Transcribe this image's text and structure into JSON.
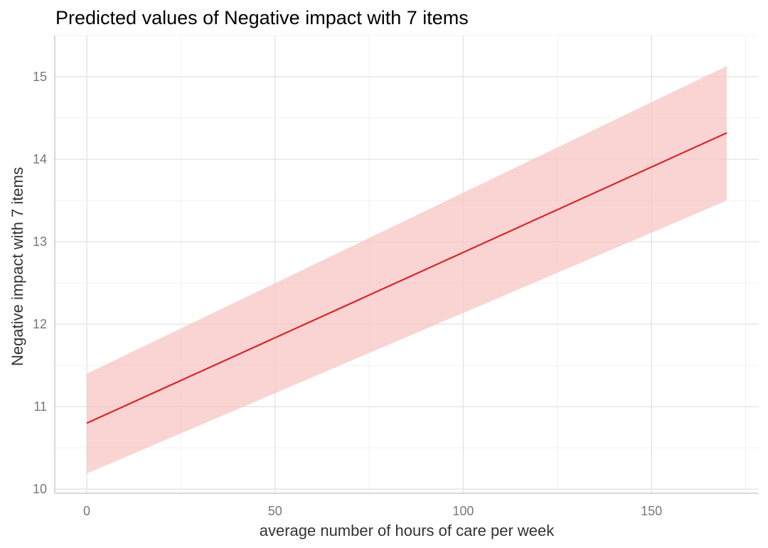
{
  "chart_data": {
    "type": "line",
    "title": "Predicted values of Negative impact with 7 items",
    "xlabel": "average number of hours of care per week",
    "ylabel": "Negative impact with 7 items",
    "xlim": [
      -8.5,
      178.5
    ],
    "ylim": [
      9.95,
      15.5
    ],
    "x_ticks": [
      0,
      50,
      100,
      150
    ],
    "x_minor_ticks": [
      25,
      75,
      125,
      175
    ],
    "y_ticks": [
      10,
      11,
      12,
      13,
      14,
      15
    ],
    "y_minor_ticks": [
      10.5,
      11.5,
      12.5,
      13.5,
      14.5,
      15.5
    ],
    "grid": true,
    "series": [
      {
        "name": "predicted",
        "color": "#d62728",
        "x": [
          0,
          170
        ],
        "y": [
          10.8,
          14.32
        ]
      }
    ],
    "confidence_band": {
      "color": "#f8c4c4",
      "x": [
        0,
        170
      ],
      "lower": [
        10.19,
        13.5
      ],
      "upper": [
        11.4,
        15.13
      ]
    }
  }
}
